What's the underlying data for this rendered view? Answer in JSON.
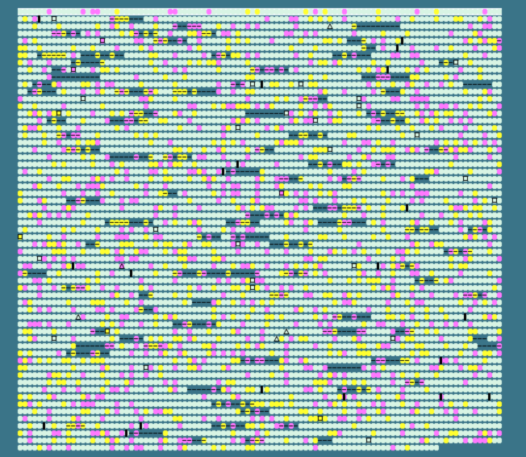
{
  "board": {
    "columns": 100,
    "rows": 61,
    "last_row_cells": 87,
    "colors": {
      "background": "#3a7488",
      "header_band": "#f4fbff",
      "empty_cell": "#d8f4e4",
      "yellow_cell": "#ffff30",
      "magenta_cell": "#ff78ff",
      "marker": "#000000"
    },
    "cell_kinds": [
      "empty",
      "yellow",
      "magenta",
      "dash",
      "square-marker",
      "bar-marker",
      "triangle-marker"
    ]
  }
}
